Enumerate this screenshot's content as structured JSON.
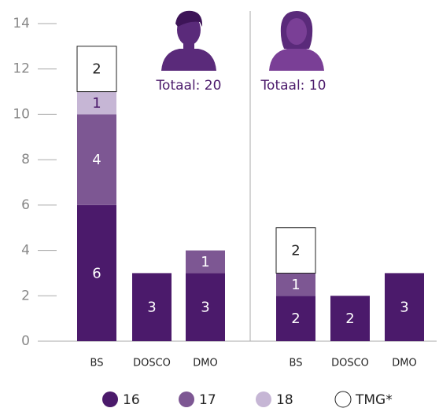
{
  "chart_data": {
    "type": "bar",
    "stacked": true,
    "categories": [
      "BS",
      "DOSCO",
      "DMO",
      "BS",
      "DOSCO",
      "DMO"
    ],
    "series": [
      {
        "name": "16",
        "color": "#4b1a6b",
        "values": [
          6,
          3,
          3,
          2,
          2,
          3
        ]
      },
      {
        "name": "17",
        "color": "#7d5793",
        "values": [
          4,
          null,
          1,
          1,
          null,
          null
        ]
      },
      {
        "name": "18",
        "color": "#c6b6d5",
        "values": [
          1,
          null,
          null,
          null,
          null,
          null
        ]
      },
      {
        "name": "TMG*",
        "color": "#ffffff",
        "values": [
          2,
          null,
          null,
          2,
          null,
          null
        ]
      }
    ],
    "annotations": [
      "Totaal: 20",
      "Totaal: 10"
    ],
    "ylim": [
      0,
      14
    ],
    "yticks": [
      0,
      2,
      4,
      6,
      8,
      10,
      12,
      14
    ]
  }
}
